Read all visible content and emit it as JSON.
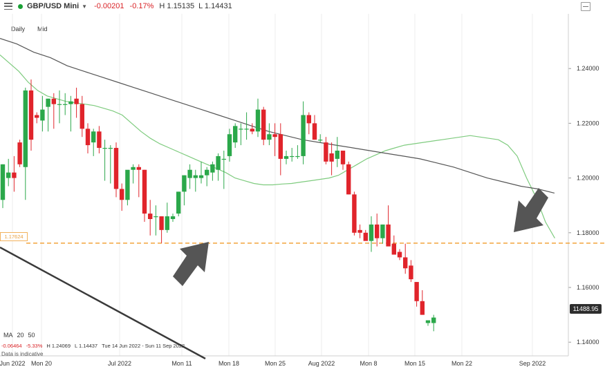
{
  "header": {
    "symbol": "GBP/USD Mini",
    "change": "-0.00201",
    "change_pct": "-0.17%",
    "high": "H 1.15135",
    "low": "L 1.14431"
  },
  "sub_labels": {
    "interval": "Daily",
    "price_type": "Mid"
  },
  "ma_legend": {
    "label": "MA",
    "short": "20",
    "long": "50"
  },
  "ohlc_summary": {
    "change": "-0.06464",
    "change_pct": "-5.33%",
    "high": "H 1.24069",
    "low": "L 1.14437",
    "range": "Tue 14 Jun 2022 - Sun 11 Sep 2022"
  },
  "indicative": "Data is indicative",
  "current_price_label": "11488.95",
  "level_label": "1.17624",
  "colors": {
    "up": "#2ba84a",
    "down": "#e0242b",
    "ma_short": "#7ecb7e",
    "ma_long": "#555555",
    "level": "#f2a33a",
    "arrow": "#555555"
  },
  "chart_data": {
    "type": "candlestick",
    "title": "",
    "ylim": [
      1.135,
      1.26
    ],
    "y_ticks": [
      "1.24000",
      "1.22000",
      "1.20000",
      "1.18000",
      "1.16000",
      "1.14000"
    ],
    "x_ticks": [
      "Jun 2022",
      "Mon 20",
      "Jul 2022",
      "Mon 11",
      "Mon 18",
      "Mon 25",
      "Aug 2022",
      "Mon 8",
      "Mon 15",
      "Mon 22",
      "Sep 2022"
    ],
    "horizontal_level": 1.1762,
    "candles": [
      {
        "o": 1.192,
        "h": 1.205,
        "l": 1.189,
        "c": 1.205
      },
      {
        "o": 1.2,
        "h": 1.207,
        "l": 1.197,
        "c": 1.202
      },
      {
        "o": 1.202,
        "h": 1.208,
        "l": 1.195,
        "c": 1.2
      },
      {
        "o": 1.213,
        "h": 1.214,
        "l": 1.204,
        "c": 1.205
      },
      {
        "o": 1.204,
        "h": 1.233,
        "l": 1.192,
        "c": 1.232
      },
      {
        "o": 1.232,
        "h": 1.236,
        "l": 1.21,
        "c": 1.214
      },
      {
        "o": 1.223,
        "h": 1.224,
        "l": 1.22,
        "c": 1.222
      },
      {
        "o": 1.221,
        "h": 1.23,
        "l": 1.217,
        "c": 1.225
      },
      {
        "o": 1.226,
        "h": 1.229,
        "l": 1.217,
        "c": 1.229
      },
      {
        "o": 1.229,
        "h": 1.231,
        "l": 1.218,
        "c": 1.227
      },
      {
        "o": 1.227,
        "h": 1.232,
        "l": 1.22,
        "c": 1.227
      },
      {
        "o": 1.227,
        "h": 1.231,
        "l": 1.223,
        "c": 1.227
      },
      {
        "o": 1.227,
        "h": 1.23,
        "l": 1.217,
        "c": 1.228
      },
      {
        "o": 1.229,
        "h": 1.233,
        "l": 1.222,
        "c": 1.227
      },
      {
        "o": 1.227,
        "h": 1.23,
        "l": 1.215,
        "c": 1.218
      },
      {
        "o": 1.218,
        "h": 1.22,
        "l": 1.209,
        "c": 1.212
      },
      {
        "o": 1.213,
        "h": 1.218,
        "l": 1.208,
        "c": 1.217
      },
      {
        "o": 1.217,
        "h": 1.219,
        "l": 1.209,
        "c": 1.211
      },
      {
        "o": 1.211,
        "h": 1.214,
        "l": 1.199,
        "c": 1.211
      },
      {
        "o": 1.211,
        "h": 1.212,
        "l": 1.198,
        "c": 1.211
      },
      {
        "o": 1.211,
        "h": 1.213,
        "l": 1.193,
        "c": 1.196
      },
      {
        "o": 1.196,
        "h": 1.198,
        "l": 1.188,
        "c": 1.192
      },
      {
        "o": 1.192,
        "h": 1.202,
        "l": 1.19,
        "c": 1.203
      },
      {
        "o": 1.203,
        "h": 1.205,
        "l": 1.198,
        "c": 1.204
      },
      {
        "o": 1.204,
        "h": 1.205,
        "l": 1.193,
        "c": 1.203
      },
      {
        "o": 1.203,
        "h": 1.203,
        "l": 1.184,
        "c": 1.187
      },
      {
        "o": 1.187,
        "h": 1.192,
        "l": 1.179,
        "c": 1.185
      },
      {
        "o": 1.186,
        "h": 1.19,
        "l": 1.179,
        "c": 1.186
      },
      {
        "o": 1.186,
        "h": 1.186,
        "l": 1.1762,
        "c": 1.181
      },
      {
        "o": 1.181,
        "h": 1.191,
        "l": 1.18,
        "c": 1.186
      },
      {
        "o": 1.185,
        "h": 1.187,
        "l": 1.184,
        "c": 1.186
      },
      {
        "o": 1.187,
        "h": 1.195,
        "l": 1.186,
        "c": 1.195
      },
      {
        "o": 1.195,
        "h": 1.201,
        "l": 1.19,
        "c": 1.201
      },
      {
        "o": 1.2,
        "h": 1.205,
        "l": 1.196,
        "c": 1.203
      },
      {
        "o": 1.2,
        "h": 1.203,
        "l": 1.195,
        "c": 1.201
      },
      {
        "o": 1.2,
        "h": 1.206,
        "l": 1.198,
        "c": 1.201
      },
      {
        "o": 1.201,
        "h": 1.204,
        "l": 1.197,
        "c": 1.203
      },
      {
        "o": 1.202,
        "h": 1.206,
        "l": 1.199,
        "c": 1.205
      },
      {
        "o": 1.203,
        "h": 1.209,
        "l": 1.199,
        "c": 1.208
      },
      {
        "o": 1.207,
        "h": 1.21,
        "l": 1.196,
        "c": 1.207
      },
      {
        "o": 1.208,
        "h": 1.218,
        "l": 1.206,
        "c": 1.216
      },
      {
        "o": 1.213,
        "h": 1.22,
        "l": 1.211,
        "c": 1.219
      },
      {
        "o": 1.218,
        "h": 1.22,
        "l": 1.212,
        "c": 1.218
      },
      {
        "o": 1.218,
        "h": 1.224,
        "l": 1.214,
        "c": 1.218
      },
      {
        "o": 1.218,
        "h": 1.22,
        "l": 1.216,
        "c": 1.217
      },
      {
        "o": 1.217,
        "h": 1.229,
        "l": 1.215,
        "c": 1.225
      },
      {
        "o": 1.225,
        "h": 1.226,
        "l": 1.212,
        "c": 1.214
      },
      {
        "o": 1.214,
        "h": 1.22,
        "l": 1.212,
        "c": 1.216
      },
      {
        "o": 1.216,
        "h": 1.22,
        "l": 1.208,
        "c": 1.215
      },
      {
        "o": 1.216,
        "h": 1.22,
        "l": 1.201,
        "c": 1.207
      },
      {
        "o": 1.207,
        "h": 1.21,
        "l": 1.205,
        "c": 1.208
      },
      {
        "o": 1.208,
        "h": 1.211,
        "l": 1.206,
        "c": 1.208
      },
      {
        "o": 1.208,
        "h": 1.212,
        "l": 1.207,
        "c": 1.208
      },
      {
        "o": 1.208,
        "h": 1.228,
        "l": 1.205,
        "c": 1.223
      },
      {
        "o": 1.223,
        "h": 1.224,
        "l": 1.216,
        "c": 1.22
      },
      {
        "o": 1.22,
        "h": 1.223,
        "l": 1.214,
        "c": 1.214
      },
      {
        "o": 1.214,
        "h": 1.216,
        "l": 1.213,
        "c": 1.214
      },
      {
        "o": 1.213,
        "h": 1.215,
        "l": 1.205,
        "c": 1.206
      },
      {
        "o": 1.209,
        "h": 1.213,
        "l": 1.201,
        "c": 1.206
      },
      {
        "o": 1.207,
        "h": 1.215,
        "l": 1.204,
        "c": 1.21
      },
      {
        "o": 1.21,
        "h": 1.21,
        "l": 1.203,
        "c": 1.205
      },
      {
        "o": 1.205,
        "h": 1.206,
        "l": 1.194,
        "c": 1.194
      },
      {
        "o": 1.194,
        "h": 1.195,
        "l": 1.179,
        "c": 1.18
      },
      {
        "o": 1.181,
        "h": 1.183,
        "l": 1.178,
        "c": 1.18
      },
      {
        "o": 1.18,
        "h": 1.181,
        "l": 1.178,
        "c": 1.177
      },
      {
        "o": 1.177,
        "h": 1.186,
        "l": 1.173,
        "c": 1.183
      },
      {
        "o": 1.183,
        "h": 1.187,
        "l": 1.175,
        "c": 1.178
      },
      {
        "o": 1.178,
        "h": 1.183,
        "l": 1.176,
        "c": 1.183
      },
      {
        "o": 1.183,
        "h": 1.19,
        "l": 1.176,
        "c": 1.175
      },
      {
        "o": 1.176,
        "h": 1.179,
        "l": 1.172,
        "c": 1.172
      },
      {
        "o": 1.173,
        "h": 1.174,
        "l": 1.17,
        "c": 1.171
      },
      {
        "o": 1.171,
        "h": 1.176,
        "l": 1.165,
        "c": 1.167
      },
      {
        "o": 1.168,
        "h": 1.17,
        "l": 1.162,
        "c": 1.163
      },
      {
        "o": 1.162,
        "h": 1.162,
        "l": 1.153,
        "c": 1.155
      },
      {
        "o": 1.155,
        "h": 1.159,
        "l": 1.15,
        "c": 1.15
      },
      {
        "o": 1.147,
        "h": 1.148,
        "l": 1.146,
        "c": 1.148
      },
      {
        "o": 1.147,
        "h": 1.15,
        "l": 1.144,
        "c": 1.149
      }
    ],
    "ma_short": [
      1.245,
      1.242,
      1.239,
      1.235,
      1.232,
      1.23,
      1.229,
      1.228,
      1.2275,
      1.227,
      1.2265,
      1.2255,
      1.2245,
      1.223,
      1.22,
      1.217,
      1.2145,
      1.2125,
      1.211,
      1.2095,
      1.208,
      1.2065,
      1.205,
      1.2035,
      1.202,
      1.2,
      1.199,
      1.198,
      1.1975,
      1.1975,
      1.1978,
      1.198,
      1.1985,
      1.199,
      1.1995,
      1.2,
      1.201,
      1.203,
      1.205,
      1.207,
      1.2085,
      1.21,
      1.211,
      1.212,
      1.2125,
      1.213,
      1.2135,
      1.214,
      1.2145,
      1.215,
      1.2155,
      1.215,
      1.2145,
      1.214,
      1.212,
      1.208,
      1.2,
      1.193,
      1.184,
      1.178
    ],
    "ma_long": [
      1.251,
      1.249,
      1.246,
      1.244,
      1.241,
      1.239,
      1.237,
      1.235,
      1.233,
      1.231,
      1.229,
      1.227,
      1.225,
      1.223,
      1.221,
      1.219,
      1.217,
      1.2155,
      1.214,
      1.213,
      1.212,
      1.211,
      1.21,
      1.209,
      1.208,
      1.207,
      1.2055,
      1.204,
      1.202,
      1.2,
      1.1985,
      1.197,
      1.196,
      1.1945
    ]
  }
}
